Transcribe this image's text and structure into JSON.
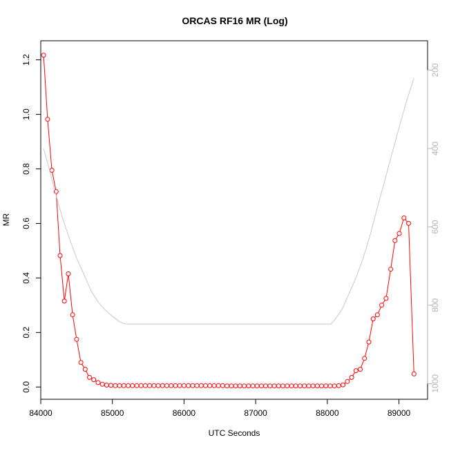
{
  "chart_data": {
    "type": "line",
    "title": "ORCAS RF16 MR (Log)",
    "xlabel": "UTC Seconds",
    "ylabel": "MR",
    "xlim": [
      84000,
      89400
    ],
    "ylim": [
      -0.045,
      1.27
    ],
    "y2lim": [
      1040,
      125
    ],
    "y2_inverted": true,
    "x_ticks": [
      84000,
      85000,
      86000,
      87000,
      88000,
      89000
    ],
    "y_ticks": [
      0.0,
      0.2,
      0.4,
      0.6,
      0.8,
      1.0,
      1.2
    ],
    "y_tick_labels": [
      "0.0",
      "0.2",
      "0.4",
      "0.6",
      "0.8",
      "1.0",
      "1.2"
    ],
    "y2_ticks": [
      200,
      400,
      600,
      800,
      1000
    ],
    "series": [
      {
        "role": "mr",
        "color": "#ff0000",
        "style": "line+open-circle",
        "x": [
          84040,
          84095,
          84155,
          84215,
          84270,
          84330,
          84385,
          84445,
          84500,
          84560,
          84620,
          84680,
          84740,
          84800,
          84860,
          84920,
          84980,
          85040,
          85100,
          85160,
          85220,
          85280,
          85340,
          85400,
          85460,
          85520,
          85580,
          85640,
          85700,
          85760,
          85820,
          85880,
          85940,
          86000,
          86060,
          86120,
          86180,
          86240,
          86300,
          86360,
          86420,
          86480,
          86540,
          86600,
          86660,
          86720,
          86780,
          86840,
          86900,
          86960,
          87020,
          87080,
          87140,
          87200,
          87260,
          87320,
          87380,
          87440,
          87500,
          87560,
          87620,
          87680,
          87740,
          87800,
          87860,
          87920,
          87980,
          88040,
          88100,
          88160,
          88220,
          88280,
          88340,
          88400,
          88460,
          88520,
          88580,
          88640,
          88700,
          88760,
          88820,
          88885,
          88945,
          89005,
          89070,
          89135,
          89210
        ],
        "y": [
          1.217,
          0.982,
          0.795,
          0.717,
          0.482,
          0.315,
          0.415,
          0.265,
          0.175,
          0.09,
          0.065,
          0.035,
          0.027,
          0.016,
          0.01,
          0.007,
          0.006,
          0.005,
          0.005,
          0.005,
          0.005,
          0.005,
          0.005,
          0.005,
          0.005,
          0.005,
          0.005,
          0.005,
          0.005,
          0.005,
          0.005,
          0.005,
          0.005,
          0.005,
          0.005,
          0.005,
          0.005,
          0.005,
          0.005,
          0.005,
          0.005,
          0.005,
          0.005,
          0.004,
          0.004,
          0.004,
          0.004,
          0.004,
          0.004,
          0.004,
          0.004,
          0.004,
          0.004,
          0.004,
          0.004,
          0.004,
          0.004,
          0.004,
          0.004,
          0.004,
          0.004,
          0.004,
          0.004,
          0.004,
          0.004,
          0.004,
          0.004,
          0.004,
          0.004,
          0.005,
          0.008,
          0.02,
          0.035,
          0.06,
          0.065,
          0.105,
          0.165,
          0.25,
          0.265,
          0.3,
          0.325,
          0.432,
          0.537,
          0.563,
          0.62,
          0.6,
          0.048
        ]
      },
      {
        "role": "pressure",
        "color": "#c8c8c8",
        "style": "line",
        "axis": "right",
        "x": [
          84040,
          84100,
          84200,
          84300,
          84400,
          84500,
          84600,
          84700,
          84800,
          84900,
          85000,
          85100,
          85150,
          85200,
          85500,
          86000,
          86500,
          87000,
          87500,
          88000,
          88050,
          88100,
          88200,
          88300,
          88400,
          88500,
          88600,
          88700,
          88800,
          88900,
          89000,
          89100,
          89210
        ],
        "y": [
          400,
          440,
          510,
          575,
          630,
          680,
          720,
          762,
          792,
          812,
          828,
          842,
          846,
          848,
          848,
          848,
          848,
          848,
          848,
          848,
          848,
          838,
          812,
          772,
          730,
          680,
          620,
          550,
          483,
          415,
          348,
          283,
          220
        ]
      }
    ]
  }
}
